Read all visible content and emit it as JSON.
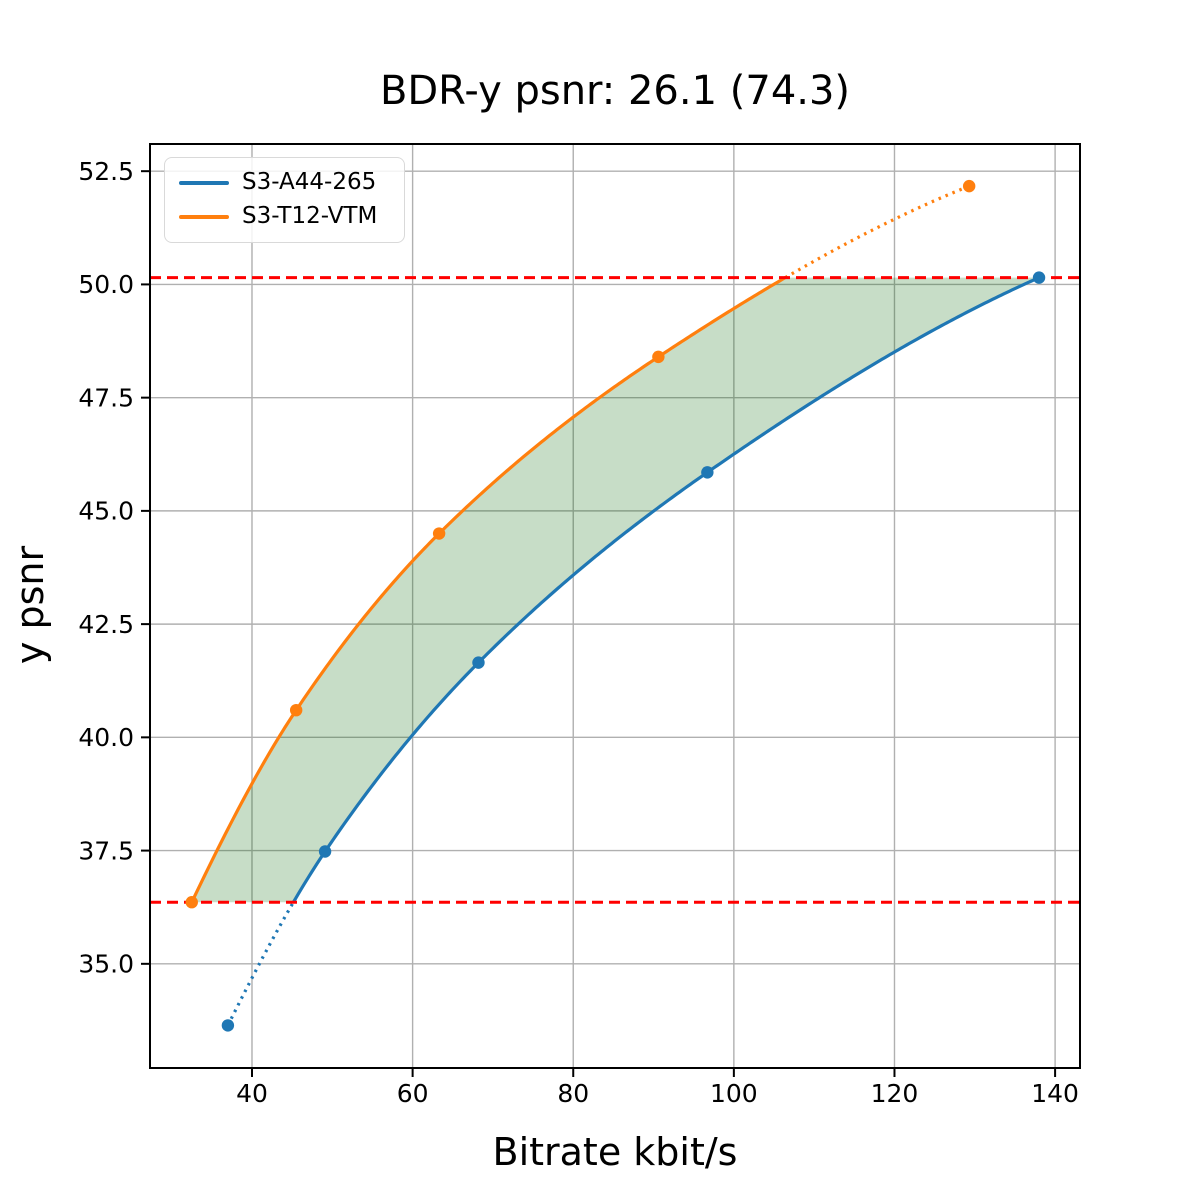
{
  "chart_data": {
    "type": "line",
    "title": "BDR-y psnr: 26.1 (74.3)",
    "xlabel": "Bitrate kbit/s",
    "ylabel": "y psnr",
    "xlim": [
      27.3,
      143.1
    ],
    "ylim": [
      32.7,
      53.1
    ],
    "xticks": [
      40,
      60,
      80,
      100,
      120,
      140
    ],
    "xtick_labels": [
      "40",
      "60",
      "80",
      "100",
      "120",
      "140"
    ],
    "yticks": [
      35.0,
      37.5,
      40.0,
      42.5,
      45.0,
      47.5,
      50.0,
      52.5
    ],
    "ytick_labels": [
      "35.0",
      "37.5",
      "40.0",
      "42.5",
      "45.0",
      "47.5",
      "50.0",
      "52.5"
    ],
    "grid": true,
    "grid_color": "#b0b0b0",
    "legend_position": "upper-left",
    "series": [
      {
        "name": "S3-A44-265",
        "color": "#1f77b4",
        "marker": "circle",
        "interpolation": "pchip",
        "points": [
          [
            37.0,
            33.64
          ],
          [
            49.1,
            37.48
          ],
          [
            68.2,
            41.65
          ],
          [
            96.7,
            45.85
          ],
          [
            138.0,
            50.15
          ]
        ]
      },
      {
        "name": "S3-T12-VTM",
        "color": "#ff7f0e",
        "marker": "circle",
        "interpolation": "pchip",
        "points": [
          [
            32.5,
            36.36
          ],
          [
            45.5,
            40.6
          ],
          [
            63.3,
            44.5
          ],
          [
            90.6,
            48.4
          ],
          [
            129.3,
            52.17
          ]
        ]
      }
    ],
    "overlap_band": {
      "lower": 36.36,
      "upper": 50.15,
      "line_color": "#ff0000",
      "line_style": "dashed",
      "fill_color": "#006400",
      "fill_alpha": 0.22
    }
  }
}
